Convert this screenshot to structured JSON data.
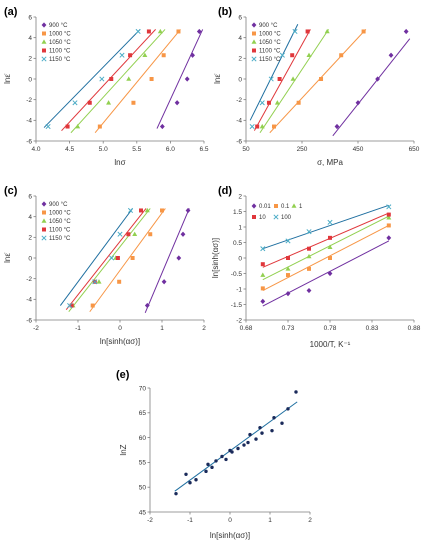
{
  "figure": {
    "colors": {
      "900": "#7030a0",
      "1000": "#f79646",
      "1050": "#92d050",
      "1100": "#e0373b",
      "1150": "#4bacc6",
      "1150_line": "#1f6fa0"
    }
  },
  "chart_data": [
    {
      "panel": "(a)",
      "type": "scatter",
      "xlabel": "lnσ",
      "ylabel": "lnε̇",
      "xlim": [
        4,
        6.5
      ],
      "ylim": [
        -6,
        6
      ],
      "xticks": [
        "4.0",
        "4.5",
        "5.0",
        "5.5",
        "6.0",
        "6.5"
      ],
      "yticks": [
        "-6",
        "-4",
        "-2",
        "0",
        "2",
        "4",
        "6"
      ],
      "legend_position": "top-left",
      "series": [
        {
          "name": "900 °C",
          "key": "900",
          "marker": "diamond",
          "x": [
            5.88,
            6.1,
            6.25,
            6.33,
            6.43
          ],
          "y": [
            -4.6,
            -2.3,
            0,
            2.3,
            4.6
          ],
          "fit": [
            [
              5.8,
              -4.8
            ],
            [
              6.48,
              4.8
            ]
          ]
        },
        {
          "name": "1000 °C",
          "key": "1000",
          "marker": "square",
          "x": [
            4.95,
            5.45,
            5.72,
            5.9,
            6.12
          ],
          "y": [
            -4.6,
            -2.3,
            0,
            2.3,
            4.6
          ],
          "fit": [
            [
              4.88,
              -5.2
            ],
            [
              6.15,
              4.8
            ]
          ]
        },
        {
          "name": "1050 °C",
          "key": "1050",
          "marker": "triangle",
          "x": [
            4.62,
            5.08,
            5.38,
            5.62,
            5.85
          ],
          "y": [
            -4.6,
            -2.3,
            0,
            2.3,
            4.6
          ],
          "fit": [
            [
              4.52,
              -5.2
            ],
            [
              5.92,
              4.8
            ]
          ]
        },
        {
          "name": "1100 °C",
          "key": "1100",
          "marker": "square",
          "x": [
            4.47,
            4.8,
            5.12,
            5.4,
            5.68
          ],
          "y": [
            -4.6,
            -2.3,
            0,
            2.3,
            4.6
          ],
          "fit": [
            [
              4.38,
              -5.0
            ],
            [
              5.78,
              4.8
            ]
          ]
        },
        {
          "name": "1150 °C",
          "key": "1150",
          "marker": "x",
          "x": [
            4.18,
            4.58,
            4.98,
            5.28,
            5.52
          ],
          "y": [
            -4.6,
            -2.3,
            0,
            2.3,
            4.6
          ],
          "fit": [
            [
              4.12,
              -4.7
            ],
            [
              5.55,
              4.8
            ]
          ]
        }
      ]
    },
    {
      "panel": "(b)",
      "type": "scatter",
      "xlabel": "σ, MPa",
      "ylabel": "lnε̇",
      "xlim": [
        50,
        650
      ],
      "ylim": [
        -6,
        6
      ],
      "xticks": [
        "50",
        "250",
        "450",
        "650"
      ],
      "yticks": [
        "-6",
        "-4",
        "-2",
        "0",
        "2",
        "4",
        "6"
      ],
      "legend_position": "top-left",
      "series": [
        {
          "name": "900 °C",
          "key": "900",
          "marker": "diamond",
          "x": [
            375,
            450,
            520,
            568,
            622
          ],
          "y": [
            -4.6,
            -2.3,
            0,
            2.3,
            4.6
          ],
          "fit": [
            [
              360,
              -5.5
            ],
            [
              635,
              3.9
            ]
          ]
        },
        {
          "name": "1000 °C",
          "key": "1000",
          "marker": "square",
          "x": [
            150,
            238,
            318,
            390,
            470
          ],
          "y": [
            -4.6,
            -2.3,
            0,
            2.3,
            4.6
          ],
          "fit": [
            [
              135,
              -5.2
            ],
            [
              478,
              4.8
            ]
          ]
        },
        {
          "name": "1050 °C",
          "key": "1050",
          "marker": "triangle",
          "x": [
            108,
            162,
            218,
            275,
            340
          ],
          "y": [
            -4.6,
            -2.3,
            0,
            2.3,
            4.6
          ],
          "fit": [
            [
              100,
              -5.2
            ],
            [
              345,
              4.8
            ]
          ]
        },
        {
          "name": "1100 °C",
          "key": "1100",
          "marker": "square",
          "x": [
            90,
            132,
            170,
            215,
            270
          ],
          "y": [
            -4.6,
            -2.3,
            0,
            2.3,
            4.6
          ],
          "fit": [
            [
              80,
              -5.0
            ],
            [
              280,
              4.8
            ]
          ]
        },
        {
          "name": "1150 °C",
          "key": "1150",
          "marker": "x",
          "x": [
            72,
            108,
            140,
            180,
            225
          ],
          "y": [
            -4.6,
            -2.3,
            0,
            2.3,
            4.6
          ],
          "fit": [
            [
              65,
              -4.0
            ],
            [
              235,
              5.3
            ]
          ]
        }
      ]
    },
    {
      "panel": "(c)",
      "type": "scatter",
      "xlabel": "ln[sinh(ασ)]",
      "ylabel": "lnε̇",
      "xlim": [
        -2,
        2
      ],
      "ylim": [
        -6,
        6
      ],
      "xticks": [
        "-2",
        "-1",
        "0",
        "1",
        "2"
      ],
      "yticks": [
        "-6",
        "-4",
        "-2",
        "0",
        "2",
        "4",
        "6"
      ],
      "legend_position": "top-left",
      "series": [
        {
          "name": "900 °C",
          "key": "900",
          "marker": "diamond",
          "x": [
            0.65,
            1.05,
            1.4,
            1.5,
            1.62
          ],
          "y": [
            -4.6,
            -2.3,
            0,
            2.3,
            4.6
          ],
          "fit": [
            [
              0.6,
              -5.3
            ],
            [
              1.65,
              4.8
            ]
          ]
        },
        {
          "name": "1000 °C",
          "key": "1000",
          "marker": "square",
          "x": [
            -0.65,
            -0.02,
            0.3,
            0.72,
            1.0
          ],
          "y": [
            -4.6,
            -2.3,
            0,
            2.3,
            4.6
          ],
          "fit": [
            [
              -0.72,
              -5.2
            ],
            [
              1.08,
              4.8
            ]
          ]
        },
        {
          "name": "1050 °C",
          "key": "1050",
          "marker": "triangle",
          "x": [
            -1.12,
            -0.5,
            -0.1,
            0.35,
            0.65
          ],
          "y": [
            -4.6,
            -2.3,
            0,
            2.3,
            4.6
          ],
          "fit": [
            [
              -1.22,
              -5.2
            ],
            [
              0.72,
              4.8
            ]
          ]
        },
        {
          "name": "1100 °C",
          "key": "1100",
          "marker": "square",
          "x": [
            -1.15,
            -0.6,
            -0.05,
            0.2,
            0.5
          ],
          "y": [
            -4.6,
            -2.3,
            0,
            2.3,
            4.6
          ],
          "fit": [
            [
              -1.28,
              -5.0
            ],
            [
              0.62,
              4.8
            ]
          ]
        },
        {
          "name": "1150 °C",
          "key": "1150",
          "marker": "x",
          "x": [
            -1.2,
            -0.6,
            -0.2,
            0.0,
            0.25
          ],
          "y": [
            -4.6,
            -2.3,
            0,
            2.3,
            4.6
          ],
          "fit": [
            [
              -1.42,
              -4.6
            ],
            [
              0.3,
              4.8
            ]
          ]
        }
      ]
    },
    {
      "panel": "(d)",
      "type": "scatter",
      "xlabel": "1000/T, K⁻¹",
      "ylabel": "ln[sinh(ασ)]",
      "xlim": [
        0.68,
        0.88
      ],
      "ylim": [
        -2,
        2
      ],
      "xticks": [
        "0.68",
        "0.73",
        "0.78",
        "0.83",
        "0.88"
      ],
      "yticks": [
        "-2",
        "-1.5",
        "-1",
        "-0.5",
        "0",
        "0.5",
        "1",
        "1.5",
        "2"
      ],
      "legend_position": "top-left",
      "series": [
        {
          "name": "0.01",
          "key": "900",
          "marker": "diamond",
          "x": [
            0.7,
            0.73,
            0.755,
            0.78,
            0.85
          ],
          "y": [
            -1.4,
            -1.15,
            -1.05,
            -0.5,
            0.65
          ],
          "fit": [
            [
              0.7,
              -1.55
            ],
            [
              0.85,
              0.55
            ]
          ]
        },
        {
          "name": "0.1",
          "key": "1000",
          "marker": "square",
          "x": [
            0.7,
            0.73,
            0.755,
            0.78,
            0.85
          ],
          "y": [
            -0.98,
            -0.55,
            -0.35,
            0.0,
            1.05
          ],
          "fit": [
            [
              0.7,
              -1.05
            ],
            [
              0.85,
              1.05
            ]
          ]
        },
        {
          "name": "1",
          "key": "1050",
          "marker": "triangle",
          "x": [
            0.7,
            0.73,
            0.755,
            0.78,
            0.85
          ],
          "y": [
            -0.55,
            -0.35,
            0.05,
            0.35,
            1.3
          ],
          "fit": [
            [
              0.7,
              -0.7
            ],
            [
              0.85,
              1.35
            ]
          ]
        },
        {
          "name": "10",
          "key": "1100",
          "marker": "square",
          "x": [
            0.7,
            0.73,
            0.755,
            0.78,
            0.85
          ],
          "y": [
            -0.2,
            0.0,
            0.3,
            0.65,
            1.4
          ],
          "fit": [
            [
              0.7,
              -0.3
            ],
            [
              0.85,
              1.45
            ]
          ]
        },
        {
          "name": "100",
          "key": "1150",
          "marker": "x",
          "x": [
            0.7,
            0.73,
            0.755,
            0.78,
            0.85
          ],
          "y": [
            0.3,
            0.55,
            0.85,
            1.15,
            1.65
          ],
          "fit": [
            [
              0.7,
              0.3
            ],
            [
              0.85,
              1.7
            ]
          ]
        }
      ]
    },
    {
      "panel": "(e)",
      "type": "scatter",
      "xlabel": "ln[sinh(ασ)]",
      "ylabel": "lnZ",
      "xlim": [
        -2,
        2
      ],
      "ylim": [
        45,
        70
      ],
      "xticks": [
        "-2",
        "-1",
        "0",
        "1",
        "2"
      ],
      "yticks": [
        "45",
        "50",
        "55",
        "60",
        "65",
        "70"
      ],
      "series": [
        {
          "key": "point",
          "marker": "dot",
          "x": [
            -1.35,
            -1.1,
            -1.0,
            -0.85,
            -0.6,
            -0.55,
            -0.45,
            -0.35,
            -0.2,
            -0.1,
            0.0,
            0.05,
            0.2,
            0.35,
            0.45,
            0.5,
            0.65,
            0.75,
            0.8,
            1.05,
            1.1,
            1.3,
            1.45,
            1.65
          ],
          "y": [
            48.7,
            52.6,
            50.9,
            51.5,
            53.2,
            54.6,
            54.0,
            55.3,
            56.2,
            55.6,
            57.4,
            57.1,
            57.8,
            58.5,
            59.0,
            60.6,
            59.7,
            62.0,
            60.9,
            61.4,
            64.0,
            62.9,
            65.8,
            69.2
          ],
          "fit": [
            [
              -1.38,
              49.2
            ],
            [
              1.68,
              67.2
            ]
          ]
        }
      ]
    }
  ]
}
